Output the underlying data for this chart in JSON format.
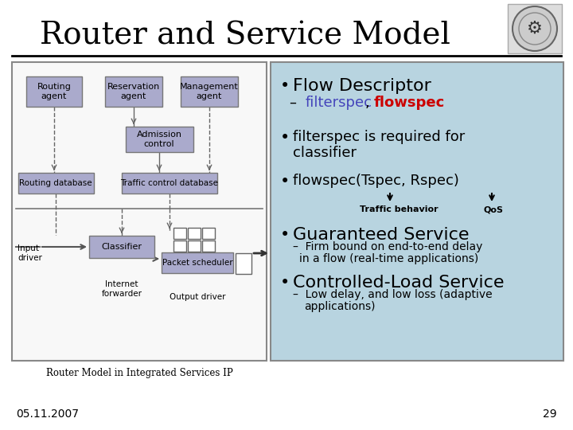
{
  "title": "Router and Service Model",
  "bg_color": "#ffffff",
  "title_color": "#000000",
  "slide_number": "29",
  "date": "05.11.2007",
  "right_panel_bg": "#b8d4e0",
  "right_panel_border": "#888888",
  "diagram_caption": "Router Model in Integrated Services IP",
  "left_box_color": "#aaaacc",
  "left_box_border": "#888888",
  "filterspec_color": "#4444bb",
  "flowspec_color": "#cc0000"
}
